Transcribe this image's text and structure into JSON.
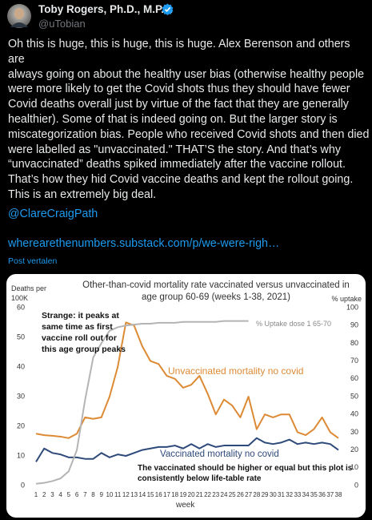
{
  "tweet": {
    "author": "Toby Rogers, Ph.D., M.P.P.",
    "handle": "@uTobian",
    "body_lines": [
      "Oh this is huge, this is huge, this is huge. Alex Berenson and others are",
      "always going on about the healthy user bias (otherwise healthy people",
      "were more likely to get the Covid shots thus they should have fewer",
      "Covid deaths overall just by virtue of the fact that they are generally",
      "healthier). Some of that is indeed going on. But the larger story is",
      "miscategorization bias. People who received Covid shots and then died",
      "were labelled as \"unvaccinated.\" THAT’S the story. And that’s why",
      "“unvaccinated” deaths spiked immediately after the vaccine rollout.",
      "That’s how they hid Covid vaccine deaths and kept the rollout going.",
      "This is an extremely big deal."
    ],
    "mention": "@ClareCraigPath",
    "link": "wherearethenumbers.substack.com/p/we-were-righ…",
    "translate": "Post vertalen"
  },
  "chart_data": {
    "type": "line",
    "title": "Other-than-covid mortality rate vaccinated versus unvaccinated in age group 60-69  (weeks 1-38, 2021)",
    "ylabel": "Deaths per 100K",
    "y2label": "% uptake",
    "xlabel": "week",
    "x": [
      1,
      2,
      3,
      4,
      5,
      6,
      7,
      8,
      9,
      10,
      11,
      12,
      13,
      14,
      15,
      16,
      17,
      18,
      19,
      20,
      21,
      22,
      23,
      24,
      25,
      26,
      27,
      28,
      29,
      30,
      31,
      32,
      33,
      34,
      35,
      36,
      37,
      38
    ],
    "xlim": [
      1,
      38
    ],
    "xticks": [
      1,
      2,
      3,
      4,
      5,
      6,
      7,
      8,
      9,
      10,
      11,
      12,
      13,
      14,
      15,
      16,
      17,
      18,
      19,
      20,
      21,
      22,
      23,
      24,
      25,
      26,
      27,
      28,
      29,
      30,
      31,
      32,
      33,
      34,
      35,
      36,
      37,
      38
    ],
    "ylim": [
      0,
      60
    ],
    "yticks": [
      0,
      10,
      20,
      30,
      40,
      50,
      60
    ],
    "y2lim": [
      0,
      100
    ],
    "y2ticks": [
      0,
      10,
      20,
      30,
      40,
      50,
      60,
      70,
      80,
      90,
      100
    ],
    "grid": false,
    "series": [
      {
        "name": "Unvaccinated mortality no covid",
        "color": "#dd8a35",
        "values": [
          17.5,
          17,
          16.8,
          16.5,
          16,
          17.5,
          23,
          22.5,
          23,
          30,
          40,
          55,
          54,
          47,
          42,
          41,
          37,
          36,
          33,
          34,
          37,
          31,
          24,
          29,
          27,
          23,
          30,
          19,
          24,
          23,
          24,
          24,
          18,
          17,
          19,
          23,
          18,
          16
        ]
      },
      {
        "name": "Vaccinated mortality no covid",
        "color": "#2e4a7a",
        "values": [
          8,
          12.5,
          11,
          10.5,
          9.5,
          9.5,
          9,
          9,
          11,
          9.5,
          10.5,
          10,
          11,
          12,
          12.5,
          13,
          13,
          13.5,
          12.5,
          14,
          12.5,
          14,
          13,
          13.5,
          13.5,
          13.5,
          13.5,
          16,
          14.5,
          14,
          14.5,
          15.5,
          14,
          14.5,
          14,
          14.5,
          14,
          12
        ]
      },
      {
        "name": "% Uptake dose 1 65-70",
        "color": "#b4b4b4",
        "axis": "y2",
        "values": [
          1,
          1.5,
          2.5,
          4,
          8,
          20,
          48,
          72,
          80,
          87,
          89,
          90,
          90.5,
          91,
          91,
          91.5,
          91.5,
          91.5,
          92,
          92,
          92,
          92,
          92,
          92.5,
          92.5,
          92.5,
          92.5,
          null,
          null,
          null,
          null,
          null,
          null,
          null,
          null,
          null,
          null,
          null
        ]
      }
    ],
    "annotations": [
      "Strange: it peaks at same time as first vaccine roll out for this age group peaks",
      "The vaccinated should be higher or equal but this plot is consistently below life-table rate"
    ]
  }
}
